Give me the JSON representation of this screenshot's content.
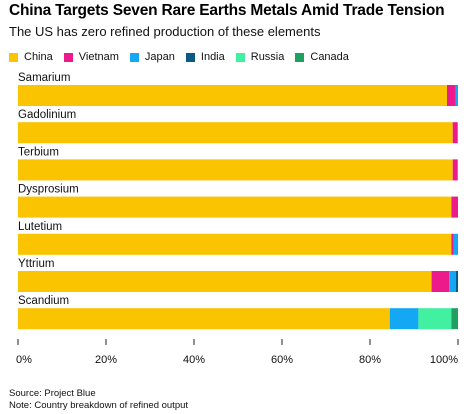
{
  "header": {
    "title": "China Targets Seven Rare Earths Metals Amid Trade Tension",
    "subtitle": "The US has zero refined production of these elements"
  },
  "footer": {
    "source": "Source: Project Blue",
    "note": "Note: Country breakdown of refined output"
  },
  "chart_data": {
    "type": "bar",
    "orientation": "horizontal",
    "stacked": true,
    "title": "China Targets Seven Rare Earths Metals Amid Trade Tension",
    "subtitle": "The US has zero refined production of these elements",
    "legend_position": "top-left",
    "grid": false,
    "xlim": [
      0,
      100
    ],
    "x_ticks": [
      "0%",
      "20%",
      "40%",
      "60%",
      "80%",
      "100%"
    ],
    "categories": [
      "Samarium",
      "Gadolinium",
      "Terbium",
      "Dysprosium",
      "Lutetium",
      "Yttrium",
      "Scandium"
    ],
    "series": [
      {
        "name": "China",
        "color": "#fbc400",
        "values": [
          97.5,
          98.8,
          98.8,
          98.5,
          98.5,
          94.0,
          84.5
        ]
      },
      {
        "name": "Vietnam",
        "color": "#ec1a8a",
        "values": [
          2.0,
          1.0,
          1.0,
          1.5,
          0.5,
          4.0,
          0
        ]
      },
      {
        "name": "Japan",
        "color": "#14a7f3",
        "values": [
          0.5,
          0.2,
          0.2,
          0,
          1.0,
          1.5,
          6.5
        ]
      },
      {
        "name": "India",
        "color": "#0a5a86",
        "values": [
          0,
          0,
          0,
          0,
          0,
          0.5,
          0
        ]
      },
      {
        "name": "Russia",
        "color": "#42f0a1",
        "values": [
          0,
          0,
          0,
          0,
          0,
          0,
          7.5
        ]
      },
      {
        "name": "Canada",
        "color": "#1f9f60",
        "values": [
          0,
          0,
          0,
          0,
          0,
          0,
          1.5
        ]
      }
    ]
  }
}
